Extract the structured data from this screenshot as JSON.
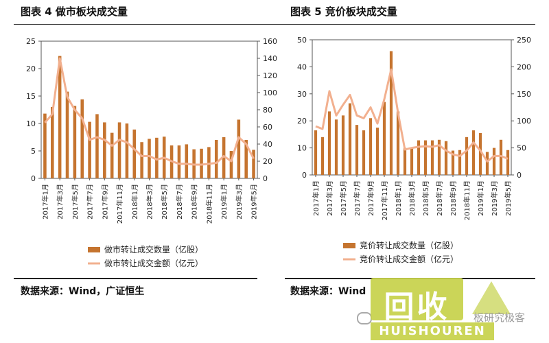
{
  "left_panel": {
    "title": "图表 4 做市板块成交量",
    "source": "数据来源：Wind，广证恒生"
  },
  "right_panel": {
    "title": "图表 5 竞价板块成交量",
    "source": "数据来源：Wind"
  },
  "watermark": {
    "logo_text": "回收",
    "brand_text": "HUISHOUREN",
    "caption": "板研究极客"
  },
  "colors": {
    "bar": "#c5742f",
    "line": "#f2b08f",
    "axis": "#555555"
  },
  "chart_data": [
    {
      "type": "bar",
      "categories": [
        "2017年1月",
        "2017年2月",
        "2017年3月",
        "2017年4月",
        "2017年5月",
        "2017年6月",
        "2017年7月",
        "2017年8月",
        "2017年9月",
        "2017年10月",
        "2017年11月",
        "2017年12月",
        "2018年1月",
        "2018年2月",
        "2018年3月",
        "2018年4月",
        "2018年5月",
        "2018年6月",
        "2018年7月",
        "2018年8月",
        "2018年9月",
        "2018年10月",
        "2018年11月",
        "2018年12月",
        "2019年1月",
        "2019年2月",
        "2019年3月",
        "2019年4月",
        "2019年5月"
      ],
      "tick_labels": [
        "2017年1月",
        "2017年3月",
        "2017年5月",
        "2017年7月",
        "2017年9月",
        "2017年11月",
        "2018年1月",
        "2018年3月",
        "2018年5月",
        "2018年7月",
        "2018年9月",
        "2018年11月",
        "2019年1月",
        "2019年3月",
        "2019年5月"
      ],
      "series": [
        {
          "name": "做市转让成交数量（亿股）",
          "kind": "bar",
          "axis": "left",
          "values": [
            11.8,
            13.0,
            22.3,
            15.8,
            13.2,
            14.4,
            10.3,
            11.7,
            10.2,
            8.3,
            10.2,
            10.0,
            8.9,
            6.6,
            7.2,
            7.4,
            7.6,
            6.0,
            6.0,
            6.2,
            5.3,
            5.4,
            5.7,
            7.0,
            7.5,
            5.0,
            10.7,
            7.0,
            5.2
          ]
        },
        {
          "name": "做市转让成交金额（亿元）",
          "kind": "line",
          "axis": "right",
          "values": [
            65,
            75,
            140,
            95,
            80,
            70,
            45,
            48,
            45,
            38,
            45,
            42,
            34,
            26,
            26,
            22,
            24,
            20,
            17,
            17,
            16,
            16,
            17,
            18,
            26,
            20,
            48,
            40,
            23
          ]
        }
      ],
      "yleft": {
        "ticks": [
          0,
          5,
          10,
          15,
          20,
          25
        ],
        "lim": [
          0,
          25
        ]
      },
      "yright": {
        "ticks": [
          0,
          20,
          40,
          60,
          80,
          100,
          120,
          140,
          160
        ],
        "lim": [
          0,
          160
        ]
      }
    },
    {
      "type": "bar",
      "categories": [
        "2017年1月",
        "2017年2月",
        "2017年3月",
        "2017年4月",
        "2017年5月",
        "2017年6月",
        "2017年7月",
        "2017年8月",
        "2017年9月",
        "2017年10月",
        "2017年11月",
        "2017年12月",
        "2018年1月",
        "2018年2月",
        "2018年3月",
        "2018年4月",
        "2018年5月",
        "2018年6月",
        "2018年7月",
        "2018年8月",
        "2018年9月",
        "2018年10月",
        "2018年11月",
        "2018年12月",
        "2019年1月",
        "2019年2月",
        "2019年3月",
        "2019年4月",
        "2019年5月"
      ],
      "tick_labels": [
        "2017年1月",
        "2017年3月",
        "2017年5月",
        "2017年7月",
        "2017年9月",
        "2017年11月",
        "2018年1月",
        "2018年3月",
        "2018年5月",
        "2018年7月",
        "2018年9月",
        "2018年11月",
        "2019年1月",
        "2019年3月",
        "2019年5月"
      ],
      "series": [
        {
          "name": "竞价转让成交数量（亿股）",
          "kind": "bar",
          "axis": "left",
          "values": [
            16.5,
            14.0,
            23.5,
            20.5,
            22.0,
            26.5,
            18.5,
            16.5,
            21.0,
            17.5,
            27.0,
            45.8,
            23.5,
            10.0,
            10.0,
            12.8,
            12.8,
            12.8,
            13.0,
            12.5,
            9.0,
            9.2,
            14.0,
            16.5,
            15.5,
            8.5,
            10.0,
            13.0,
            9.2
          ]
        },
        {
          "name": "竞价转让成交金额（亿元）",
          "kind": "line",
          "axis": "right",
          "values": [
            90,
            85,
            155,
            110,
            130,
            148,
            110,
            105,
            125,
            95,
            140,
            195,
            115,
            47,
            50,
            52,
            53,
            52,
            55,
            45,
            38,
            35,
            45,
            60,
            45,
            25,
            35,
            35,
            30
          ]
        }
      ],
      "yleft": {
        "ticks": [
          0,
          10,
          20,
          30,
          40,
          50
        ],
        "lim": [
          0,
          50
        ]
      },
      "yright": {
        "ticks": [
          0,
          50,
          100,
          150,
          200,
          250
        ],
        "lim": [
          0,
          250
        ]
      }
    }
  ]
}
